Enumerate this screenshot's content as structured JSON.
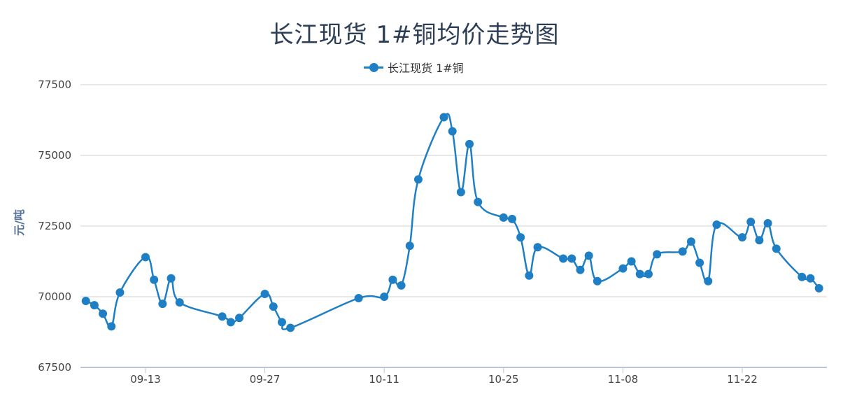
{
  "chart_data": {
    "type": "line",
    "title": "长江现货 1#铜均价走势图",
    "ylabel": "元/吨",
    "xlabel": "",
    "ylim": [
      67500,
      77500
    ],
    "yticks": [
      "77500",
      "75000",
      "72500",
      "70000",
      "67500"
    ],
    "xticks": [
      "09-13",
      "09-27",
      "10-11",
      "10-25",
      "11-08",
      "11-22"
    ],
    "legend_position": "top-center",
    "grid": true,
    "series": [
      {
        "name": "长江现货 1#铜",
        "color": "#1f7fc4",
        "x": [
          "09-06",
          "09-07",
          "09-08",
          "09-09",
          "09-10",
          "09-13",
          "09-14",
          "09-15",
          "09-16",
          "09-17",
          "09-22",
          "09-23",
          "09-24",
          "09-27",
          "09-28",
          "09-29",
          "09-30",
          "10-08",
          "10-11",
          "10-12",
          "10-13",
          "10-14",
          "10-15",
          "10-18",
          "10-19",
          "10-20",
          "10-21",
          "10-22",
          "10-25",
          "10-26",
          "10-27",
          "10-28",
          "10-29",
          "11-01",
          "11-02",
          "11-03",
          "11-04",
          "11-05",
          "11-08",
          "11-09",
          "11-10",
          "11-11",
          "11-12",
          "11-15",
          "11-16",
          "11-17",
          "11-18",
          "11-19",
          "11-22",
          "11-23",
          "11-24",
          "11-25",
          "11-26",
          "11-29",
          "11-30",
          "12-01"
        ],
        "values": [
          69850,
          69700,
          69400,
          68950,
          70150,
          71400,
          70600,
          69750,
          70650,
          69800,
          69300,
          69100,
          69250,
          70100,
          69650,
          69100,
          68900,
          69950,
          70000,
          70600,
          70400,
          71800,
          74150,
          76350,
          75850,
          73700,
          75400,
          73350,
          72800,
          72750,
          72100,
          70750,
          71750,
          71350,
          71350,
          70950,
          71450,
          70550,
          71000,
          71250,
          70800,
          70800,
          71500,
          71600,
          71950,
          71200,
          70550,
          72550,
          72100,
          72650,
          72000,
          72600,
          71700,
          70700,
          70650,
          70300
        ]
      }
    ]
  }
}
